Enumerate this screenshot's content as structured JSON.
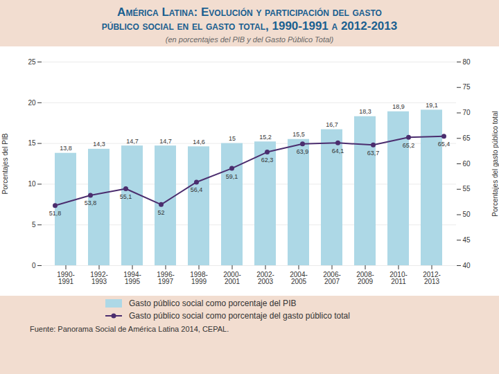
{
  "chart_data": {
    "type": "bar",
    "title": "América Latina: Evolución y participación del gasto\npúblico social en el gasto total, 1990-1991 a 2012-2013",
    "subtitle": "(en porcentajes del PIB y del Gasto Público Total)",
    "categories": [
      "1990-\n1991",
      "1992-\n1993",
      "1994-\n1995",
      "1996-\n1997",
      "1998-\n1999",
      "2000-\n2001",
      "2002-\n2003",
      "2004-\n2005",
      "2006-\n2007",
      "2008-\n2009",
      "2010-\n2011",
      "2012-\n2013"
    ],
    "series": [
      {
        "name": "Gasto público social como porcentaje del PIB",
        "type": "bar",
        "color": "#add8e6",
        "values": [
          13.8,
          14.3,
          14.7,
          14.7,
          14.6,
          15.0,
          15.2,
          15.5,
          16.7,
          18.3,
          18.9,
          19.1
        ],
        "value_labels": [
          "13,8",
          "14,3",
          "14,7",
          "14,7",
          "14,6",
          "15",
          "15,2",
          "15,5",
          "16,7",
          "18,3",
          "18,9",
          "19,1"
        ]
      },
      {
        "name": "Gasto público social como porcentaje del gasto público total",
        "type": "line",
        "axis": "y2",
        "color": "#4b2d6e",
        "marker": "o",
        "values": [
          51.8,
          53.8,
          55.1,
          52.0,
          56.4,
          59.1,
          62.3,
          63.9,
          64.1,
          63.7,
          65.2,
          65.4
        ],
        "value_labels": [
          "51,8",
          "53,8",
          "55,1",
          "52",
          "56,4",
          "59,1",
          "62,3",
          "63,9",
          "64,1",
          "63,7",
          "65,2",
          "65,4"
        ]
      }
    ],
    "ylabel": "Porcentajes del PIB",
    "y2label": "Porcentajes del gasto público total",
    "ylim": [
      0,
      25
    ],
    "yticks": [
      0,
      5,
      10,
      15,
      20,
      25
    ],
    "y2lim": [
      40,
      80
    ],
    "y2ticks": [
      40,
      45,
      50,
      55,
      60,
      65,
      70,
      75,
      80
    ],
    "grid": true,
    "data_labels": true,
    "legend": "bottom",
    "source": "Fuente: Panorama Social de América Latina 2014, CEPAL."
  }
}
